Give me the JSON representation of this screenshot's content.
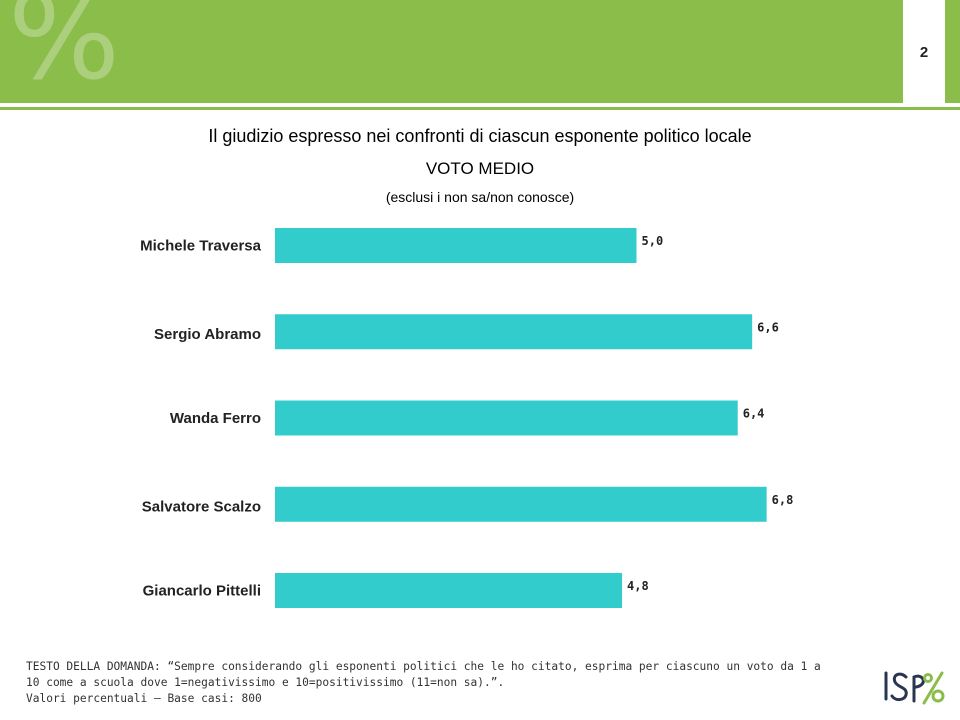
{
  "header": {
    "page_number": "2",
    "watermark": "%"
  },
  "chart_data": {
    "type": "bar",
    "orientation": "horizontal",
    "title": "Il giudizio espresso nei confronti di ciascun esponente politico locale",
    "subtitle": "VOTO MEDIO",
    "note": "(esclusi i non sa/non conosce)",
    "categories": [
      "Michele Traversa",
      "Sergio Abramo",
      "Wanda Ferro",
      "Salvatore Scalzo",
      "Giancarlo Pittelli"
    ],
    "values": [
      5.0,
      6.6,
      6.4,
      6.8,
      4.8
    ],
    "value_labels": [
      "5,0",
      "6,6",
      "6,4",
      "6,8",
      "4,8"
    ],
    "xlim": [
      0,
      10
    ],
    "bar_color": "#33cccc",
    "grid": false,
    "legend": "none"
  },
  "footnote": {
    "question": "TESTO DELLA DOMANDA: “Sempre considerando gli esponenti politici che le ho citato, esprima per ciascuno un voto da 1 a 10 come a scuola dove 1=negativissimo e 10=positivissimo (11=non sa).”.",
    "base": "Valori percentuali – Base casi: 800"
  },
  "logo": {
    "name": "ispo-logo",
    "text": "ISPO"
  },
  "colors": {
    "accent": "#8bbd4b",
    "bar": "#33cccc"
  }
}
